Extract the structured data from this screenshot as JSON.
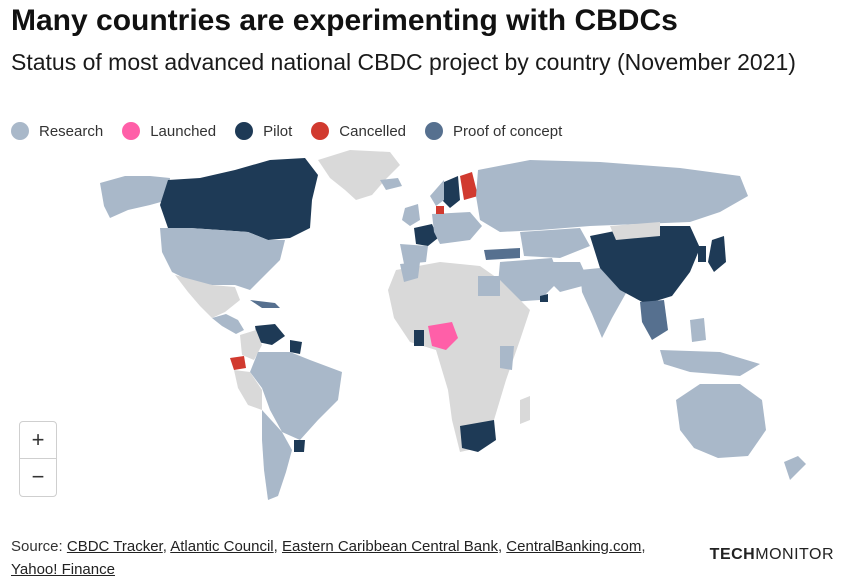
{
  "title": "Many countries are experimenting with CBDCs",
  "subtitle": "Status of most advanced national CBDC project by country (November 2021)",
  "legend": [
    {
      "label": "Research",
      "color": "#a9b8c9"
    },
    {
      "label": "Launched",
      "color": "#ff5fa8"
    },
    {
      "label": "Pilot",
      "color": "#1e3a56"
    },
    {
      "label": "Cancelled",
      "color": "#d13a2f"
    },
    {
      "label": "Proof of concept",
      "color": "#56708f"
    }
  ],
  "colors": {
    "no_data": "#d9d9d9",
    "research": "#a9b8c9",
    "launched": "#ff5fa8",
    "pilot": "#1e3a56",
    "cancelled": "#d13a2f",
    "proof_of_concept": "#56708f",
    "ocean": "#ffffff"
  },
  "zoom": {
    "in": "+",
    "out": "−"
  },
  "source": {
    "prefix": "Source: ",
    "links": [
      "CBDC Tracker",
      "Atlantic Council",
      "Eastern Caribbean Central Bank",
      "CentralBanking.com",
      "Yahoo! Finance"
    ]
  },
  "brand": {
    "part1": "TECH",
    "part2": "MONITOR"
  }
}
